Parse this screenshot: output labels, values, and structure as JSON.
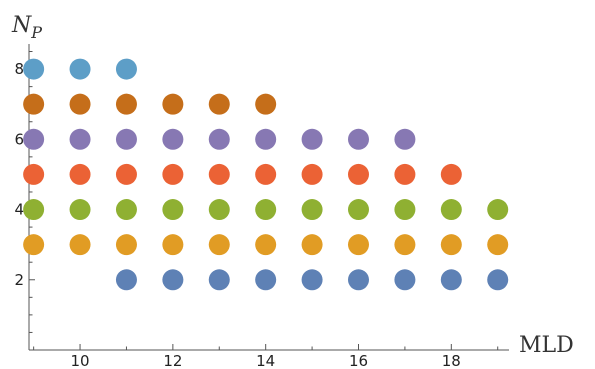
{
  "chart_data": {
    "type": "scatter",
    "title": "",
    "xlabel": "MLD",
    "ylabel_main": "N",
    "ylabel_sub": "P",
    "xlim": [
      8.9,
      19.2
    ],
    "ylim": [
      0,
      8.6
    ],
    "x_ticks": [
      10,
      12,
      14,
      16,
      18
    ],
    "y_ticks": [
      2,
      4,
      6,
      8
    ],
    "grid": false,
    "series": [
      {
        "color": "#5e81b5",
        "x": [
          11,
          12,
          13,
          14,
          15,
          16,
          17,
          18,
          19
        ],
        "y": [
          2,
          2,
          2,
          2,
          2,
          2,
          2,
          2,
          2
        ]
      },
      {
        "color": "#e19c24",
        "x": [
          9,
          10,
          11,
          12,
          13,
          14,
          15,
          16,
          17,
          18,
          19
        ],
        "y": [
          3,
          3,
          3,
          3,
          3,
          3,
          3,
          3,
          3,
          3,
          3
        ]
      },
      {
        "color": "#8fb032",
        "x": [
          9,
          10,
          11,
          12,
          13,
          14,
          15,
          16,
          17,
          18,
          19
        ],
        "y": [
          4,
          4,
          4,
          4,
          4,
          4,
          4,
          4,
          4,
          4,
          4
        ]
      },
      {
        "color": "#eb6235",
        "x": [
          9,
          10,
          11,
          12,
          13,
          14,
          15,
          16,
          17,
          18
        ],
        "y": [
          5,
          5,
          5,
          5,
          5,
          5,
          5,
          5,
          5,
          5
        ]
      },
      {
        "color": "#8778b3",
        "x": [
          9,
          10,
          11,
          12,
          13,
          14,
          15,
          16,
          17
        ],
        "y": [
          6,
          6,
          6,
          6,
          6,
          6,
          6,
          6,
          6
        ]
      },
      {
        "color": "#c56e1a",
        "x": [
          9,
          10,
          11,
          12,
          13,
          14
        ],
        "y": [
          7,
          7,
          7,
          7,
          7,
          7
        ]
      },
      {
        "color": "#5d9ec7",
        "x": [
          9,
          10,
          11
        ],
        "y": [
          8,
          8,
          8
        ]
      }
    ]
  }
}
